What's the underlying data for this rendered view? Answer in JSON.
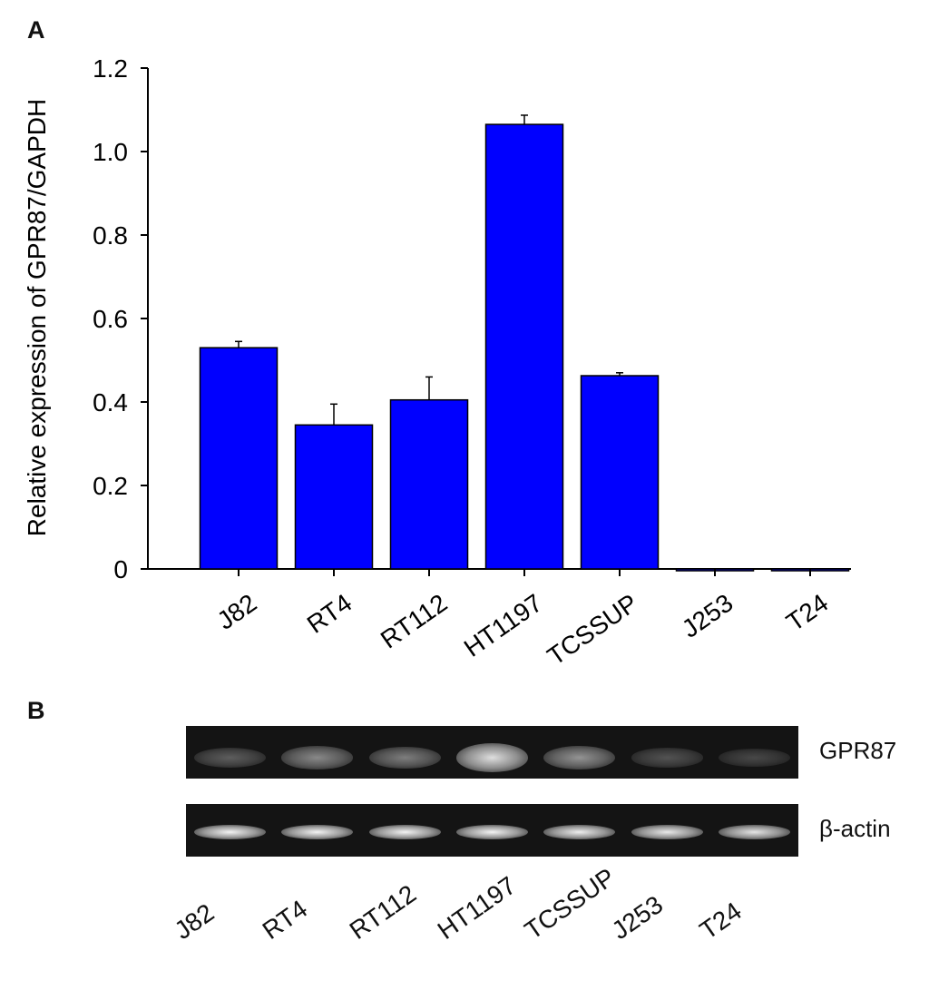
{
  "panel_a_label": "A",
  "panel_b_label": "B",
  "chart_data": {
    "type": "bar",
    "title": "",
    "xlabel": "",
    "ylabel": "Relative expression of GPR87/GAPDH",
    "ylim": [
      0,
      1.2
    ],
    "yticks": [
      "0",
      "0.2",
      "0.4",
      "0.6",
      "0.8",
      "1.0",
      "1.2"
    ],
    "categories": [
      "J82",
      "RT4",
      "RT112",
      "HT1197",
      "TCSSUP",
      "J253",
      "T24"
    ],
    "values": [
      0.53,
      0.345,
      0.405,
      1.065,
      0.463,
      0.0,
      0.0
    ],
    "error": [
      0.015,
      0.05,
      0.055,
      0.022,
      0.007,
      0.0,
      0.0
    ],
    "bar_color": "#0000ff",
    "grid": false,
    "legend": "none"
  },
  "gel": {
    "rows": [
      {
        "label": "GPR87",
        "intensities": [
          0.25,
          0.45,
          0.4,
          0.85,
          0.5,
          0.2,
          0.15
        ]
      },
      {
        "label": "β-actin",
        "intensities": [
          0.95,
          0.95,
          0.95,
          0.95,
          0.92,
          0.9,
          0.88
        ]
      }
    ],
    "lanes": [
      "J82",
      "RT4",
      "RT112",
      "HT1197",
      "TCSSUP",
      "J253",
      "T24"
    ]
  }
}
